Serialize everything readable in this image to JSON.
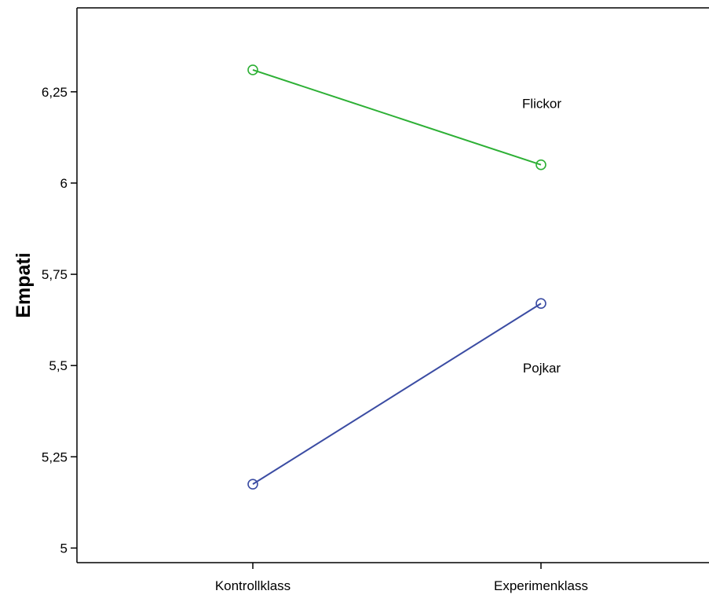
{
  "chart_data": {
    "type": "line",
    "title": "",
    "xlabel": "",
    "ylabel": "Empati",
    "categories": [
      "Kontrollklass",
      "Experimenklass"
    ],
    "ylim": [
      4.96,
      6.48
    ],
    "yticks": [
      5,
      5.25,
      5.5,
      5.75,
      6,
      6.25
    ],
    "ytick_labels": [
      "5",
      "5,25",
      "5,5",
      "5,75",
      "6",
      "6,25"
    ],
    "grid": false,
    "legend": "none",
    "series": [
      {
        "name": "Flickor",
        "values": [
          6.31,
          6.05
        ],
        "color": "#2db035",
        "marker": "circle-open"
      },
      {
        "name": "Pojkar",
        "values": [
          5.175,
          5.67
        ],
        "color": "#3b4ca3",
        "marker": "circle-open"
      }
    ]
  }
}
